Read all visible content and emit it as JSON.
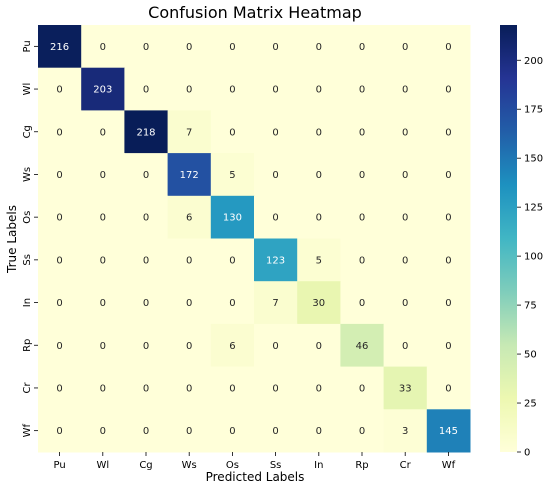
{
  "chart_data": {
    "type": "heatmap",
    "title": "Confusion Matrix Heatmap",
    "xlabel": "Predicted Labels",
    "ylabel": "True Labels",
    "x_categories": [
      "Pu",
      "Wl",
      "Cg",
      "Ws",
      "Os",
      "Ss",
      "In",
      "Rp",
      "Cr",
      "Wf"
    ],
    "y_categories": [
      "Pu",
      "Wl",
      "Cg",
      "Ws",
      "Os",
      "Ss",
      "In",
      "Rp",
      "Cr",
      "Wf"
    ],
    "values": [
      [
        216,
        0,
        0,
        0,
        0,
        0,
        0,
        0,
        0,
        0
      ],
      [
        0,
        203,
        0,
        0,
        0,
        0,
        0,
        0,
        0,
        0
      ],
      [
        0,
        0,
        218,
        7,
        0,
        0,
        0,
        0,
        0,
        0
      ],
      [
        0,
        0,
        0,
        172,
        5,
        0,
        0,
        0,
        0,
        0
      ],
      [
        0,
        0,
        0,
        6,
        130,
        0,
        0,
        0,
        0,
        0
      ],
      [
        0,
        0,
        0,
        0,
        0,
        123,
        5,
        0,
        0,
        0
      ],
      [
        0,
        0,
        0,
        0,
        0,
        7,
        30,
        0,
        0,
        0
      ],
      [
        0,
        0,
        0,
        0,
        6,
        0,
        0,
        46,
        0,
        0
      ],
      [
        0,
        0,
        0,
        0,
        0,
        0,
        0,
        0,
        33,
        0
      ],
      [
        0,
        0,
        0,
        0,
        0,
        0,
        0,
        0,
        3,
        145
      ]
    ],
    "colorscale": "YlGnBu",
    "colorbar": {
      "range": [
        0,
        218
      ],
      "ticks": [
        0,
        25,
        50,
        75,
        100,
        125,
        150,
        175,
        200
      ]
    },
    "colors": {
      "stops": [
        "#ffffd9",
        "#edf8b1",
        "#c7e9b4",
        "#7fcdbb",
        "#41b6c4",
        "#1d91c0",
        "#225ea8",
        "#253494",
        "#081d58"
      ]
    }
  }
}
